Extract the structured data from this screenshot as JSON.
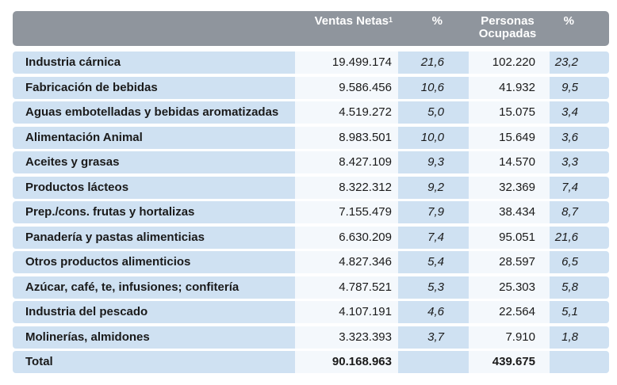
{
  "table": {
    "headers": {
      "ventas": "Ventas Netas",
      "ventas_sup": "1",
      "pct1": "%",
      "personas_line1": "Personas",
      "personas_line2": "Ocupadas",
      "pct2": "%"
    },
    "rows": [
      {
        "label": "Industria cárnica",
        "ventas": "19.499.174",
        "pct_ventas": "21,6",
        "personas": "102.220",
        "pct_personas": "23,2"
      },
      {
        "label": "Fabricación de bebidas",
        "ventas": "9.586.456",
        "pct_ventas": "10,6",
        "personas": "41.932",
        "pct_personas": "9,5"
      },
      {
        "label": "Aguas embotelladas y bebidas aromatizadas",
        "ventas": "4.519.272",
        "pct_ventas": "5,0",
        "personas": "15.075",
        "pct_personas": "3,4"
      },
      {
        "label": "Alimentación Animal",
        "ventas": "8.983.501",
        "pct_ventas": "10,0",
        "personas": "15.649",
        "pct_personas": "3,6"
      },
      {
        "label": "Aceites y grasas",
        "ventas": "8.427.109",
        "pct_ventas": "9,3",
        "personas": "14.570",
        "pct_personas": "3,3"
      },
      {
        "label": "Productos lácteos",
        "ventas": "8.322.312",
        "pct_ventas": "9,2",
        "personas": "32.369",
        "pct_personas": "7,4"
      },
      {
        "label": "Prep./cons. frutas y hortalizas",
        "ventas": "7.155.479",
        "pct_ventas": "7,9",
        "personas": "38.434",
        "pct_personas": "8,7"
      },
      {
        "label": "Panadería y pastas alimenticias",
        "ventas": "6.630.209",
        "pct_ventas": "7,4",
        "personas": "95.051",
        "pct_personas": "21,6"
      },
      {
        "label": "Otros productos alimenticios",
        "ventas": "4.827.346",
        "pct_ventas": "5,4",
        "personas": "28.597",
        "pct_personas": "6,5"
      },
      {
        "label": "Azúcar, café, te, infusiones; confitería",
        "ventas": "4.787.521",
        "pct_ventas": "5,3",
        "personas": "25.303",
        "pct_personas": "5,8"
      },
      {
        "label": "Industria del pescado",
        "ventas": "4.107.191",
        "pct_ventas": "4,6",
        "personas": "22.564",
        "pct_personas": "5,1"
      },
      {
        "label": "Molinerías, almidones",
        "ventas": "3.323.393",
        "pct_ventas": "3,7",
        "personas": "7.910",
        "pct_personas": "1,8"
      }
    ],
    "total": {
      "label": "Total",
      "ventas": "90.168.963",
      "personas": "439.675"
    }
  },
  "colors": {
    "header_bg": "#8f959d",
    "row_bg": "#cfe1f2",
    "value_col_bg": "#f4f8fc"
  }
}
